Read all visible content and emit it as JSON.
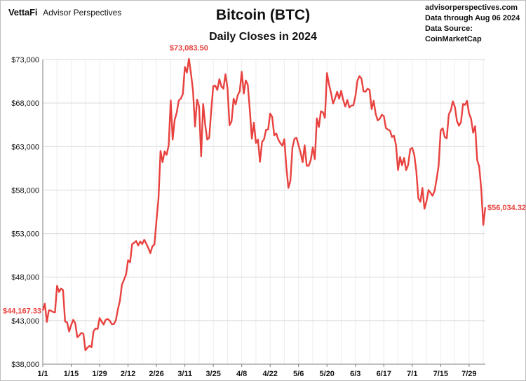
{
  "header": {
    "logo": "VettaFi",
    "brand_sub": "Advisor Perspectives",
    "title": "Bitcoin (BTC)",
    "subtitle": "Daily Closes in 2024",
    "source_lines": [
      "advisorperspectives.com",
      "Data through Aug 06 2024",
      "Data Source: CoinMarketCap"
    ]
  },
  "colors": {
    "line": "#e8423f",
    "label": "#e8423f",
    "grid": "#d9d9d9",
    "axis": "#7f7f7f",
    "text": "#111111"
  },
  "chart_data": {
    "type": "line",
    "title": "Bitcoin (BTC)",
    "subtitle": "Daily Closes in 2024",
    "xlabel": "",
    "ylabel": "",
    "ylim": [
      38000,
      73000
    ],
    "yticks": [
      38000,
      43000,
      48000,
      53000,
      58000,
      63000,
      68000,
      73000
    ],
    "ytick_labels": [
      "$38,000",
      "$43,000",
      "$48,000",
      "$53,000",
      "$58,000",
      "$63,000",
      "$68,000",
      "$73,000"
    ],
    "x_range": [
      "2024-01-01",
      "2024-08-06"
    ],
    "xtick_labels": [
      "1/1",
      "1/15",
      "1/29",
      "2/12",
      "2/26",
      "3/11",
      "3/25",
      "4/8",
      "4/22",
      "5/6",
      "5/20",
      "6/3",
      "6/17",
      "7/1",
      "7/15",
      "7/29"
    ],
    "xtick_dates": [
      "2024-01-01",
      "2024-01-15",
      "2024-01-29",
      "2024-02-12",
      "2024-02-26",
      "2024-03-11",
      "2024-03-25",
      "2024-04-08",
      "2024-04-22",
      "2024-05-06",
      "2024-05-20",
      "2024-06-03",
      "2024-06-17",
      "2024-07-01",
      "2024-07-15",
      "2024-07-29"
    ],
    "grid": true,
    "annotations": [
      {
        "text": "$44,167.33",
        "date": "2024-01-01",
        "value": 44167.33
      },
      {
        "text": "$73,083.50",
        "date": "2024-03-13",
        "value": 73083.5
      },
      {
        "text": "$56,034.32",
        "date": "2024-08-06",
        "value": 56034.32
      }
    ],
    "series": [
      {
        "points": [
          [
            "2024-01-01",
            44167
          ],
          [
            "2024-01-02",
            44950
          ],
          [
            "2024-01-03",
            42850
          ],
          [
            "2024-01-04",
            44200
          ],
          [
            "2024-01-05",
            44150
          ],
          [
            "2024-01-06",
            44000
          ],
          [
            "2024-01-07",
            43950
          ],
          [
            "2024-01-08",
            47000
          ],
          [
            "2024-01-09",
            46300
          ],
          [
            "2024-01-10",
            46700
          ],
          [
            "2024-01-11",
            46500
          ],
          [
            "2024-01-12",
            42900
          ],
          [
            "2024-01-13",
            42800
          ],
          [
            "2024-01-14",
            41750
          ],
          [
            "2024-01-15",
            42500
          ],
          [
            "2024-01-16",
            43100
          ],
          [
            "2024-01-17",
            42700
          ],
          [
            "2024-01-18",
            41100
          ],
          [
            "2024-01-19",
            41300
          ],
          [
            "2024-01-20",
            41600
          ],
          [
            "2024-01-21",
            41500
          ],
          [
            "2024-01-22",
            39600
          ],
          [
            "2024-01-23",
            39900
          ],
          [
            "2024-01-24",
            40100
          ],
          [
            "2024-01-25",
            39950
          ],
          [
            "2024-01-26",
            41800
          ],
          [
            "2024-01-27",
            42100
          ],
          [
            "2024-01-28",
            42050
          ],
          [
            "2024-01-29",
            43300
          ],
          [
            "2024-01-30",
            42900
          ],
          [
            "2024-01-31",
            42550
          ],
          [
            "2024-02-01",
            43100
          ],
          [
            "2024-02-02",
            43200
          ],
          [
            "2024-02-03",
            43000
          ],
          [
            "2024-02-04",
            42600
          ],
          [
            "2024-02-05",
            42600
          ],
          [
            "2024-02-06",
            43050
          ],
          [
            "2024-02-07",
            44300
          ],
          [
            "2024-02-08",
            45300
          ],
          [
            "2024-02-09",
            47150
          ],
          [
            "2024-02-10",
            47700
          ],
          [
            "2024-02-11",
            48300
          ],
          [
            "2024-02-12",
            49950
          ],
          [
            "2024-02-13",
            49700
          ],
          [
            "2024-02-14",
            51800
          ],
          [
            "2024-02-15",
            51950
          ],
          [
            "2024-02-16",
            52150
          ],
          [
            "2024-02-17",
            51650
          ],
          [
            "2024-02-18",
            52100
          ],
          [
            "2024-02-19",
            51800
          ],
          [
            "2024-02-20",
            52300
          ],
          [
            "2024-02-21",
            51850
          ],
          [
            "2024-02-22",
            51350
          ],
          [
            "2024-02-23",
            50750
          ],
          [
            "2024-02-24",
            51550
          ],
          [
            "2024-02-25",
            51750
          ],
          [
            "2024-02-26",
            54500
          ],
          [
            "2024-02-27",
            57050
          ],
          [
            "2024-02-28",
            62500
          ],
          [
            "2024-02-29",
            61200
          ],
          [
            "2024-03-01",
            62450
          ],
          [
            "2024-03-02",
            62050
          ],
          [
            "2024-03-03",
            63150
          ],
          [
            "2024-03-04",
            68300
          ],
          [
            "2024-03-05",
            63800
          ],
          [
            "2024-03-06",
            66100
          ],
          [
            "2024-03-07",
            66900
          ],
          [
            "2024-03-08",
            68300
          ],
          [
            "2024-03-09",
            68500
          ],
          [
            "2024-03-10",
            69050
          ],
          [
            "2024-03-11",
            72150
          ],
          [
            "2024-03-12",
            71500
          ],
          [
            "2024-03-13",
            73083
          ],
          [
            "2024-03-14",
            71400
          ],
          [
            "2024-03-15",
            69400
          ],
          [
            "2024-03-16",
            65300
          ],
          [
            "2024-03-17",
            68400
          ],
          [
            "2024-03-18",
            67600
          ],
          [
            "2024-03-19",
            61900
          ],
          [
            "2024-03-20",
            67900
          ],
          [
            "2024-03-21",
            65500
          ],
          [
            "2024-03-22",
            63800
          ],
          [
            "2024-03-23",
            64000
          ],
          [
            "2024-03-24",
            67200
          ],
          [
            "2024-03-25",
            69950
          ],
          [
            "2024-03-26",
            70000
          ],
          [
            "2024-03-27",
            69500
          ],
          [
            "2024-03-28",
            70750
          ],
          [
            "2024-03-29",
            69900
          ],
          [
            "2024-03-30",
            69650
          ],
          [
            "2024-03-31",
            71300
          ],
          [
            "2024-04-01",
            69700
          ],
          [
            "2024-04-02",
            65450
          ],
          [
            "2024-04-03",
            65900
          ],
          [
            "2024-04-04",
            68500
          ],
          [
            "2024-04-05",
            67850
          ],
          [
            "2024-04-06",
            68900
          ],
          [
            "2024-04-07",
            69350
          ],
          [
            "2024-04-08",
            71600
          ],
          [
            "2024-04-09",
            69100
          ],
          [
            "2024-04-10",
            70600
          ],
          [
            "2024-04-11",
            70100
          ],
          [
            "2024-04-12",
            67200
          ],
          [
            "2024-04-13",
            63900
          ],
          [
            "2024-04-14",
            65750
          ],
          [
            "2024-04-15",
            63400
          ],
          [
            "2024-04-16",
            63800
          ],
          [
            "2024-04-17",
            61250
          ],
          [
            "2024-04-18",
            63500
          ],
          [
            "2024-04-19",
            63850
          ],
          [
            "2024-04-20",
            64950
          ],
          [
            "2024-04-21",
            64950
          ],
          [
            "2024-04-22",
            66800
          ],
          [
            "2024-04-23",
            66400
          ],
          [
            "2024-04-24",
            64300
          ],
          [
            "2024-04-25",
            64500
          ],
          [
            "2024-04-26",
            63800
          ],
          [
            "2024-04-27",
            63400
          ],
          [
            "2024-04-28",
            63100
          ],
          [
            "2024-04-29",
            63850
          ],
          [
            "2024-04-30",
            60650
          ],
          [
            "2024-05-01",
            58250
          ],
          [
            "2024-05-02",
            59100
          ],
          [
            "2024-05-03",
            62900
          ],
          [
            "2024-05-04",
            63900
          ],
          [
            "2024-05-05",
            64000
          ],
          [
            "2024-05-06",
            63150
          ],
          [
            "2024-05-07",
            62300
          ],
          [
            "2024-05-08",
            61200
          ],
          [
            "2024-05-09",
            63150
          ],
          [
            "2024-05-10",
            60800
          ],
          [
            "2024-05-11",
            60800
          ],
          [
            "2024-05-12",
            61450
          ],
          [
            "2024-05-13",
            62900
          ],
          [
            "2024-05-14",
            61550
          ],
          [
            "2024-05-15",
            66250
          ],
          [
            "2024-05-16",
            65250
          ],
          [
            "2024-05-17",
            67050
          ],
          [
            "2024-05-18",
            66950
          ],
          [
            "2024-05-19",
            66300
          ],
          [
            "2024-05-20",
            71450
          ],
          [
            "2024-05-21",
            70150
          ],
          [
            "2024-05-22",
            69150
          ],
          [
            "2024-05-23",
            67950
          ],
          [
            "2024-05-24",
            68550
          ],
          [
            "2024-05-25",
            69300
          ],
          [
            "2024-05-26",
            68500
          ],
          [
            "2024-05-27",
            69400
          ],
          [
            "2024-05-28",
            68350
          ],
          [
            "2024-05-29",
            67600
          ],
          [
            "2024-05-30",
            68350
          ],
          [
            "2024-05-31",
            67500
          ],
          [
            "2024-06-01",
            67700
          ],
          [
            "2024-06-02",
            67750
          ],
          [
            "2024-06-03",
            68800
          ],
          [
            "2024-06-04",
            70550
          ],
          [
            "2024-06-05",
            71100
          ],
          [
            "2024-06-06",
            70800
          ],
          [
            "2024-06-07",
            69350
          ],
          [
            "2024-06-08",
            69300
          ],
          [
            "2024-06-09",
            69650
          ],
          [
            "2024-06-10",
            69500
          ],
          [
            "2024-06-11",
            67300
          ],
          [
            "2024-06-12",
            68250
          ],
          [
            "2024-06-13",
            66750
          ],
          [
            "2024-06-14",
            66000
          ],
          [
            "2024-06-15",
            66200
          ],
          [
            "2024-06-16",
            66650
          ],
          [
            "2024-06-17",
            66500
          ],
          [
            "2024-06-18",
            65150
          ],
          [
            "2024-06-19",
            64950
          ],
          [
            "2024-06-20",
            64850
          ],
          [
            "2024-06-21",
            64100
          ],
          [
            "2024-06-22",
            64250
          ],
          [
            "2024-06-23",
            63200
          ],
          [
            "2024-06-24",
            60300
          ],
          [
            "2024-06-25",
            61800
          ],
          [
            "2024-06-26",
            60850
          ],
          [
            "2024-06-27",
            61700
          ],
          [
            "2024-06-28",
            60300
          ],
          [
            "2024-06-29",
            60900
          ],
          [
            "2024-06-30",
            62700
          ],
          [
            "2024-07-01",
            62850
          ],
          [
            "2024-07-02",
            62050
          ],
          [
            "2024-07-03",
            60200
          ],
          [
            "2024-07-04",
            57050
          ],
          [
            "2024-07-05",
            56650
          ],
          [
            "2024-07-06",
            58250
          ],
          [
            "2024-07-07",
            55850
          ],
          [
            "2024-07-08",
            56700
          ],
          [
            "2024-07-09",
            58000
          ],
          [
            "2024-07-10",
            57700
          ],
          [
            "2024-07-11",
            57350
          ],
          [
            "2024-07-12",
            57900
          ],
          [
            "2024-07-13",
            59250
          ],
          [
            "2024-07-14",
            60800
          ],
          [
            "2024-07-15",
            64850
          ],
          [
            "2024-07-16",
            65100
          ],
          [
            "2024-07-17",
            64100
          ],
          [
            "2024-07-18",
            63950
          ],
          [
            "2024-07-19",
            66700
          ],
          [
            "2024-07-20",
            67150
          ],
          [
            "2024-07-21",
            68200
          ],
          [
            "2024-07-22",
            67550
          ],
          [
            "2024-07-23",
            65950
          ],
          [
            "2024-07-24",
            65400
          ],
          [
            "2024-07-25",
            65800
          ],
          [
            "2024-07-26",
            67900
          ],
          [
            "2024-07-27",
            67800
          ],
          [
            "2024-07-28",
            68250
          ],
          [
            "2024-07-29",
            66800
          ],
          [
            "2024-07-30",
            66200
          ],
          [
            "2024-07-31",
            64600
          ],
          [
            "2024-08-01",
            65350
          ],
          [
            "2024-08-02",
            61450
          ],
          [
            "2024-08-03",
            60700
          ],
          [
            "2024-08-04",
            58100
          ],
          [
            "2024-08-05",
            53990
          ],
          [
            "2024-08-06",
            56034
          ]
        ]
      }
    ]
  }
}
